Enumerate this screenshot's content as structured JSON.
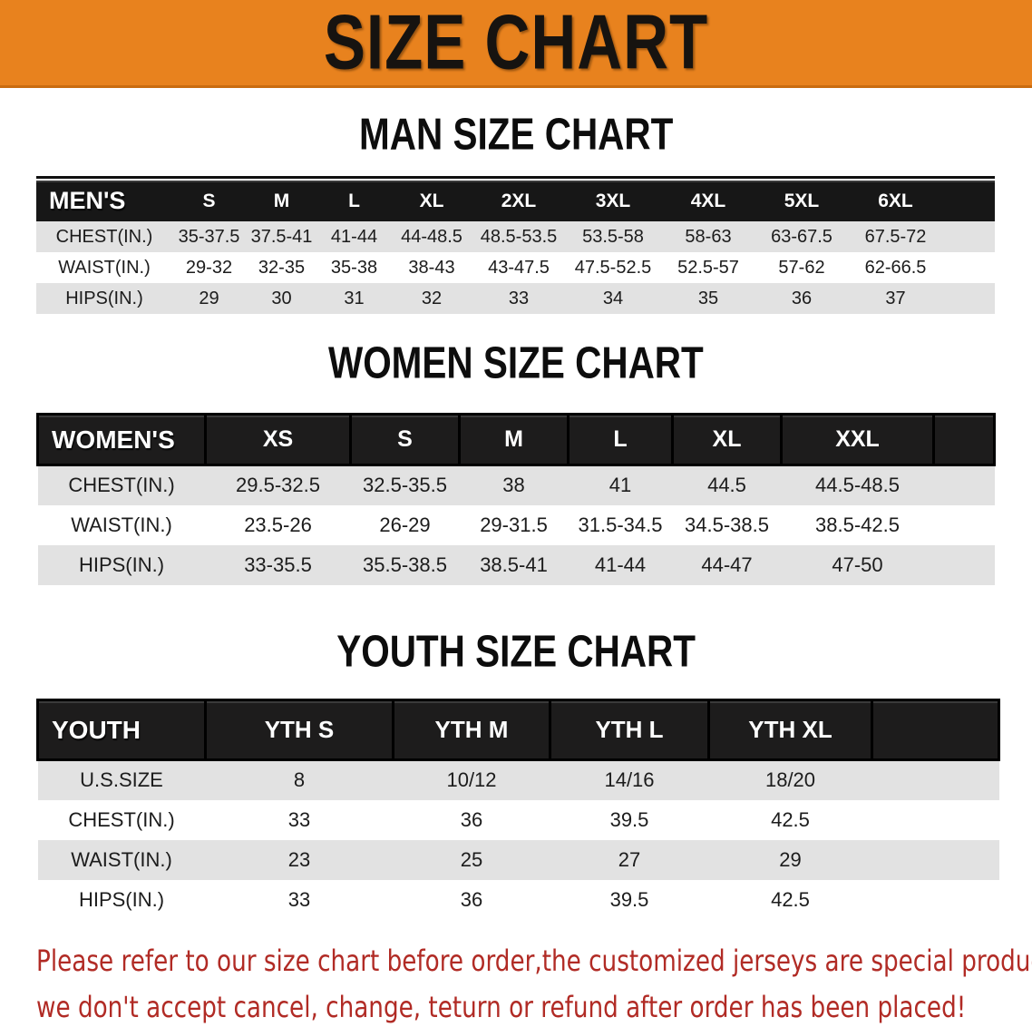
{
  "banner": {
    "title": "SIZE CHART",
    "bg_color": "#E8821E",
    "text_color": "#161310"
  },
  "colors": {
    "table_header_bg": "#171717",
    "row_alt_bg": "#E2E2E2",
    "footer_text": "#B12B25"
  },
  "sections": [
    {
      "heading": "MAN SIZE CHART",
      "table": {
        "header_label": "MEN'S",
        "columns": [
          "S",
          "M",
          "L",
          "XL",
          "2XL",
          "3XL",
          "4XL",
          "5XL",
          "6XL"
        ],
        "rows": [
          {
            "label": "CHEST(IN.)",
            "values": [
              "35-37.5",
              "37.5-41",
              "41-44",
              "44-48.5",
              "48.5-53.5",
              "53.5-58",
              "58-63",
              "63-67.5",
              "67.5-72"
            ]
          },
          {
            "label": "WAIST(IN.)",
            "values": [
              "29-32",
              "32-35",
              "35-38",
              "38-43",
              "43-47.5",
              "47.5-52.5",
              "52.5-57",
              "57-62",
              "62-66.5"
            ]
          },
          {
            "label": "HIPS(IN.)",
            "values": [
              "29",
              "30",
              "31",
              "32",
              "33",
              "34",
              "35",
              "36",
              "37"
            ]
          }
        ]
      }
    },
    {
      "heading": "WOMEN SIZE CHART",
      "table": {
        "header_label": "WOMEN'S",
        "columns": [
          "XS",
          "S",
          "M",
          "L",
          "XL",
          "XXL"
        ],
        "rows": [
          {
            "label": "CHEST(IN.)",
            "values": [
              "29.5-32.5",
              "32.5-35.5",
              "38",
              "41",
              "44.5",
              "44.5-48.5"
            ]
          },
          {
            "label": "WAIST(IN.)",
            "values": [
              "23.5-26",
              "26-29",
              "29-31.5",
              "31.5-34.5",
              "34.5-38.5",
              "38.5-42.5"
            ]
          },
          {
            "label": "HIPS(IN.)",
            "values": [
              "33-35.5",
              "35.5-38.5",
              "38.5-41",
              "41-44",
              "44-47",
              "47-50"
            ]
          }
        ]
      }
    },
    {
      "heading": "YOUTH SIZE CHART",
      "table": {
        "header_label": "YOUTH",
        "columns": [
          "YTH S",
          "YTH M",
          "YTH L",
          "YTH XL"
        ],
        "rows": [
          {
            "label": "U.S.SIZE",
            "values": [
              "8",
              "10/12",
              "14/16",
              "18/20"
            ]
          },
          {
            "label": "CHEST(IN.)",
            "values": [
              "33",
              "36",
              "39.5",
              "42.5"
            ]
          },
          {
            "label": "WAIST(IN.)",
            "values": [
              "23",
              "25",
              "27",
              "29"
            ]
          },
          {
            "label": "HIPS(IN.)",
            "values": [
              "33",
              "36",
              "39.5",
              "42.5"
            ]
          }
        ]
      }
    }
  ],
  "footer": {
    "line1": "Please refer to our size chart before order,the customized jerseys are special products,",
    "line2": "we don't accept cancel, change, teturn or refund after order has been placed!"
  }
}
